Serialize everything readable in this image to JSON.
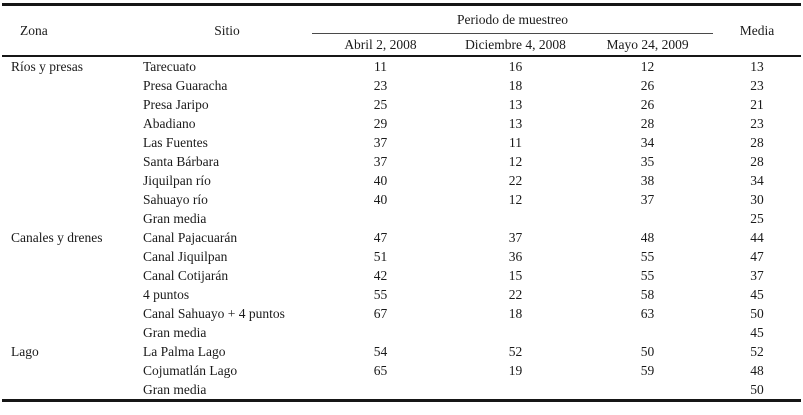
{
  "table": {
    "headers": {
      "zona": "Zona",
      "sitio": "Sitio",
      "periodo": "Periodo de muestreo",
      "dates": [
        "Abril 2, 2008",
        "Diciembre 4, 2008",
        "Mayo 24, 2009"
      ],
      "media": "Media"
    },
    "groups": [
      {
        "zona": "Ríos y presas",
        "rows": [
          {
            "sitio": "Tarecuato",
            "values": [
              "11",
              "16",
              "12"
            ],
            "media": "13"
          },
          {
            "sitio": "Presa Guaracha",
            "values": [
              "23",
              "18",
              "26"
            ],
            "media": "23"
          },
          {
            "sitio": "Presa Jaripo",
            "values": [
              "25",
              "13",
              "26"
            ],
            "media": "21"
          },
          {
            "sitio": "Abadiano",
            "values": [
              "29",
              "13",
              "28"
            ],
            "media": "23"
          },
          {
            "sitio": "Las Fuentes",
            "values": [
              "37",
              "11",
              "34"
            ],
            "media": "28"
          },
          {
            "sitio": "Santa Bárbara",
            "values": [
              "37",
              "12",
              "35"
            ],
            "media": "28"
          },
          {
            "sitio": "Jiquilpan río",
            "values": [
              "40",
              "22",
              "38"
            ],
            "media": "34"
          },
          {
            "sitio": "Sahuayo río",
            "values": [
              "40",
              "12",
              "37"
            ],
            "media": "30"
          },
          {
            "sitio": "Gran media",
            "values": [
              "",
              "",
              ""
            ],
            "media": "25"
          }
        ]
      },
      {
        "zona": "Canales y drenes",
        "rows": [
          {
            "sitio": "Canal Pajacuarán",
            "values": [
              "47",
              "37",
              "48"
            ],
            "media": "44"
          },
          {
            "sitio": "Canal Jiquilpan",
            "values": [
              "51",
              "36",
              "55"
            ],
            "media": "47"
          },
          {
            "sitio": "Canal Cotijarán",
            "values": [
              "42",
              "15",
              "55"
            ],
            "media": "37"
          },
          {
            "sitio": "4 puntos",
            "values": [
              "55",
              "22",
              "58"
            ],
            "media": "45"
          },
          {
            "sitio": "Canal Sahuayo + 4 puntos",
            "values": [
              "67",
              "18",
              "63"
            ],
            "media": "50"
          },
          {
            "sitio": "Gran media",
            "values": [
              "",
              "",
              ""
            ],
            "media": "45"
          }
        ]
      },
      {
        "zona": "Lago",
        "rows": [
          {
            "sitio": "La Palma Lago",
            "values": [
              "54",
              "52",
              "50"
            ],
            "media": "52"
          },
          {
            "sitio": "Cojumatlán Lago",
            "values": [
              "65",
              "19",
              "59"
            ],
            "media": "48"
          },
          {
            "sitio": "Gran media",
            "values": [
              "",
              "",
              ""
            ],
            "media": "50"
          }
        ]
      }
    ]
  }
}
